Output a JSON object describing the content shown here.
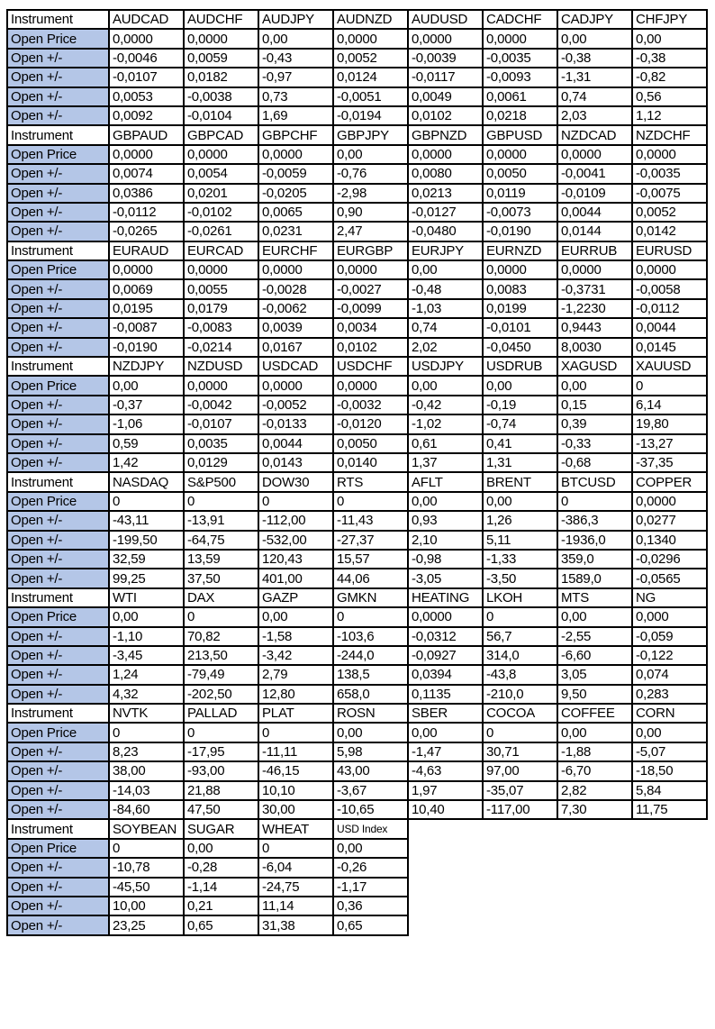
{
  "labels": {
    "instrument": "Instrument",
    "open_price": "Open Price",
    "change": "Open +/-"
  },
  "colors": {
    "up": "#00b050",
    "down": "#ff0000",
    "open_price": "#ffc000",
    "label": "#b4c6e7"
  },
  "blocks": [
    {
      "instruments": [
        {
          "name": "AUDCAD",
          "status": "up",
          "open": "0,0000",
          "changes": [
            "-0,0046",
            "-0,0107",
            "0,0053",
            "0,0092"
          ]
        },
        {
          "name": "AUDCHF",
          "status": "down",
          "open": "0,0000",
          "changes": [
            "0,0059",
            "0,0182",
            "-0,0038",
            "-0,0104"
          ]
        },
        {
          "name": "AUDJPY",
          "status": "up",
          "open": "0,00",
          "changes": [
            "-0,43",
            "-0,97",
            "0,73",
            "1,69"
          ]
        },
        {
          "name": "AUDNZD",
          "status": "down",
          "open": "0,0000",
          "changes": [
            "0,0052",
            "0,0124",
            "-0,0051",
            "-0,0194"
          ]
        },
        {
          "name": "AUDUSD",
          "status": "up",
          "open": "0,0000",
          "changes": [
            "-0,0039",
            "-0,0117",
            "0,0049",
            "0,0102"
          ]
        },
        {
          "name": "CADCHF",
          "status": "up",
          "open": "0,0000",
          "changes": [
            "-0,0035",
            "-0,0093",
            "0,0061",
            "0,0218"
          ]
        },
        {
          "name": "CADJPY",
          "status": "up",
          "open": "0,00",
          "changes": [
            "-0,38",
            "-1,31",
            "0,74",
            "2,03"
          ]
        },
        {
          "name": "CHFJPY",
          "status": "up",
          "open": "0,00",
          "changes": [
            "-0,38",
            "-0,82",
            "0,56",
            "1,12"
          ]
        }
      ]
    },
    {
      "instruments": [
        {
          "name": "GBPAUD",
          "status": "down",
          "open": "0,0000",
          "changes": [
            "0,0074",
            "0,0386",
            "-0,0112",
            "-0,0265"
          ]
        },
        {
          "name": "GBPCAD",
          "status": "down",
          "open": "0,0000",
          "changes": [
            "0,0054",
            "0,0201",
            "-0,0102",
            "-0,0261"
          ]
        },
        {
          "name": "GBPCHF",
          "status": "up",
          "open": "0,0000",
          "changes": [
            "-0,0059",
            "-0,0205",
            "0,0065",
            "0,0231"
          ]
        },
        {
          "name": "GBPJPY",
          "status": "up",
          "open": "0,00",
          "changes": [
            "-0,76",
            "-2,98",
            "0,90",
            "2,47"
          ]
        },
        {
          "name": "GBPNZD",
          "status": "down",
          "open": "0,0000",
          "changes": [
            "0,0080",
            "0,0213",
            "-0,0127",
            "-0,0480"
          ]
        },
        {
          "name": "GBPUSD",
          "status": "down",
          "open": "0,0000",
          "changes": [
            "0,0050",
            "0,0119",
            "-0,0073",
            "-0,0190"
          ]
        },
        {
          "name": "NZDCAD",
          "status": "up",
          "open": "0,0000",
          "changes": [
            "-0,0041",
            "-0,0109",
            "0,0044",
            "0,0144"
          ]
        },
        {
          "name": "NZDCHF",
          "status": "up",
          "open": "0,0000",
          "changes": [
            "-0,0035",
            "-0,0075",
            "0,0052",
            "0,0142"
          ]
        }
      ]
    },
    {
      "instruments": [
        {
          "name": "EURAUD",
          "status": "down",
          "open": "0,0000",
          "changes": [
            "0,0069",
            "0,0195",
            "-0,0087",
            "-0,0190"
          ]
        },
        {
          "name": "EURCAD",
          "status": "down",
          "open": "0,0000",
          "changes": [
            "0,0055",
            "0,0179",
            "-0,0083",
            "-0,0214"
          ]
        },
        {
          "name": "EURCHF",
          "status": "up",
          "open": "0,0000",
          "changes": [
            "-0,0028",
            "-0,0062",
            "0,0039",
            "0,0167"
          ]
        },
        {
          "name": "EURGBP",
          "status": "up",
          "open": "0,0000",
          "changes": [
            "-0,0027",
            "-0,0099",
            "0,0034",
            "0,0102"
          ]
        },
        {
          "name": "EURJPY",
          "status": "up",
          "open": "0,00",
          "changes": [
            "-0,48",
            "-1,03",
            "0,74",
            "2,02"
          ]
        },
        {
          "name": "EURNZD",
          "status": "down",
          "open": "0,0000",
          "changes": [
            "0,0083",
            "0,0199",
            "-0,0101",
            "-0,0450"
          ]
        },
        {
          "name": "EURRUB",
          "status": "up",
          "open": "0,0000",
          "changes": [
            "-0,3731",
            "-1,2230",
            "0,9443",
            "8,0030"
          ]
        },
        {
          "name": "EURUSD",
          "status": "up",
          "open": "0,0000",
          "changes": [
            "-0,0058",
            "-0,0112",
            "0,0044",
            "0,0145"
          ]
        }
      ]
    },
    {
      "instruments": [
        {
          "name": "NZDJPY",
          "status": "up",
          "open": "0,00",
          "changes": [
            "-0,37",
            "-1,06",
            "0,59",
            "1,42"
          ]
        },
        {
          "name": "NZDUSD",
          "status": "up",
          "open": "0,0000",
          "changes": [
            "-0,0042",
            "-0,0107",
            "0,0035",
            "0,0129"
          ]
        },
        {
          "name": "USDCAD",
          "status": "up",
          "open": "0,0000",
          "changes": [
            "-0,0052",
            "-0,0133",
            "0,0044",
            "0,0143"
          ]
        },
        {
          "name": "USDCHF",
          "status": "up",
          "open": "0,0000",
          "changes": [
            "-0,0032",
            "-0,0120",
            "0,0050",
            "0,0140"
          ]
        },
        {
          "name": "USDJPY",
          "status": "up",
          "open": "0,00",
          "changes": [
            "-0,42",
            "-1,02",
            "0,61",
            "1,37"
          ]
        },
        {
          "name": "USDRUB",
          "status": "up",
          "open": "0,00",
          "changes": [
            "-0,19",
            "-0,74",
            "0,41",
            "1,31"
          ]
        },
        {
          "name": "XAGUSD",
          "status": "down",
          "open": "0,00",
          "changes": [
            "0,15",
            "0,39",
            "-0,33",
            "-0,68"
          ]
        },
        {
          "name": "XAUUSD",
          "status": "down",
          "open": "0",
          "changes": [
            "6,14",
            "19,80",
            "-13,27",
            "-37,35"
          ]
        }
      ]
    },
    {
      "instruments": [
        {
          "name": "NASDAQ",
          "status": "up",
          "open": "0",
          "changes": [
            "-43,11",
            "-199,50",
            "32,59",
            "99,25"
          ]
        },
        {
          "name": "S&P500",
          "status": "up",
          "open": "0",
          "changes": [
            "-13,91",
            "-64,75",
            "13,59",
            "37,50"
          ]
        },
        {
          "name": "DOW30",
          "status": "up",
          "open": "0",
          "changes": [
            "-112,00",
            "-532,00",
            "120,43",
            "401,00"
          ]
        },
        {
          "name": "RTS",
          "status": "up",
          "open": "0",
          "changes": [
            "-11,43",
            "-27,37",
            "15,57",
            "44,06"
          ]
        },
        {
          "name": "AFLT",
          "status": "down",
          "open": "0,00",
          "changes": [
            "0,93",
            "2,10",
            "-0,98",
            "-3,05"
          ]
        },
        {
          "name": "BRENT",
          "status": "down",
          "open": "0,00",
          "changes": [
            "1,26",
            "5,11",
            "-1,33",
            "-3,50"
          ]
        },
        {
          "name": "BTCUSD",
          "status": "up",
          "open": "0",
          "changes": [
            "-386,3",
            "-1936,0",
            "359,0",
            "1589,0"
          ]
        },
        {
          "name": "COPPER",
          "status": "down",
          "open": "0,0000",
          "changes": [
            "0,0277",
            "0,1340",
            "-0,0296",
            "-0,0565"
          ]
        }
      ]
    },
    {
      "instruments": [
        {
          "name": "WTI",
          "status": "up",
          "open": "0,00",
          "changes": [
            "-1,10",
            "-3,45",
            "1,24",
            "4,32"
          ]
        },
        {
          "name": "DAX",
          "status": "down",
          "open": "0",
          "changes": [
            "70,82",
            "213,50",
            "-79,49",
            "-202,50"
          ]
        },
        {
          "name": "GAZP",
          "status": "up",
          "open": "0,00",
          "changes": [
            "-1,58",
            "-3,42",
            "2,79",
            "12,80"
          ]
        },
        {
          "name": "GMKN",
          "status": "up",
          "open": "0",
          "changes": [
            "-103,6",
            "-244,0",
            "138,5",
            "658,0"
          ]
        },
        {
          "name": "HEATING",
          "status": "up",
          "open": "0,0000",
          "changes": [
            "-0,0312",
            "-0,0927",
            "0,0394",
            "0,1135"
          ]
        },
        {
          "name": "LKOH",
          "status": "down",
          "open": "0",
          "changes": [
            "56,7",
            "314,0",
            "-43,8",
            "-210,0"
          ]
        },
        {
          "name": "MTS",
          "status": "up",
          "open": "0,00",
          "changes": [
            "-2,55",
            "-6,60",
            "3,05",
            "9,50"
          ]
        },
        {
          "name": "NG",
          "status": "up",
          "open": "0,000",
          "changes": [
            "-0,059",
            "-0,122",
            "0,074",
            "0,283"
          ]
        }
      ]
    },
    {
      "instruments": [
        {
          "name": "NVTK",
          "status": "down",
          "open": "0",
          "changes": [
            "8,23",
            "38,00",
            "-14,03",
            "-84,60"
          ]
        },
        {
          "name": "PALLAD",
          "status": "up",
          "open": "0",
          "changes": [
            "-17,95",
            "-93,00",
            "21,88",
            "47,50"
          ]
        },
        {
          "name": "PLAT",
          "status": "up",
          "open": "0",
          "changes": [
            "-11,11",
            "-46,15",
            "10,10",
            "30,00"
          ]
        },
        {
          "name": "ROSN",
          "status": "down",
          "open": "0,00",
          "changes": [
            "5,98",
            "43,00",
            "-3,67",
            "-10,65"
          ]
        },
        {
          "name": "SBER",
          "status": "up",
          "open": "0,00",
          "changes": [
            "-1,47",
            "-4,63",
            "1,97",
            "10,40"
          ]
        },
        {
          "name": "COCOA",
          "status": "down",
          "open": "0",
          "changes": [
            "30,71",
            "97,00",
            "-35,07",
            "-117,00"
          ]
        },
        {
          "name": "COFFEE",
          "status": "up",
          "open": "0,00",
          "changes": [
            "-1,88",
            "-6,70",
            "2,82",
            "7,30"
          ]
        },
        {
          "name": "CORN",
          "status": "up",
          "open": "0,00",
          "changes": [
            "-5,07",
            "-18,50",
            "5,84",
            "11,75"
          ]
        }
      ]
    },
    {
      "instruments": [
        {
          "name": "SOYBEAN",
          "status": "up",
          "open": "0",
          "changes": [
            "-10,78",
            "-45,50",
            "10,00",
            "23,25"
          ]
        },
        {
          "name": "SUGAR",
          "status": "up",
          "open": "0,00",
          "changes": [
            "-0,28",
            "-1,14",
            "0,21",
            "0,65"
          ]
        },
        {
          "name": "WHEAT",
          "status": "up",
          "open": "0",
          "changes": [
            "-6,04",
            "-24,75",
            "11,14",
            "31,38"
          ]
        },
        {
          "name": "USD Index",
          "status": "up",
          "open": "0,00",
          "changes": [
            "-0,26",
            "-1,17",
            "0,36",
            "0,65"
          ],
          "small": true,
          "light_open": true
        }
      ]
    }
  ]
}
